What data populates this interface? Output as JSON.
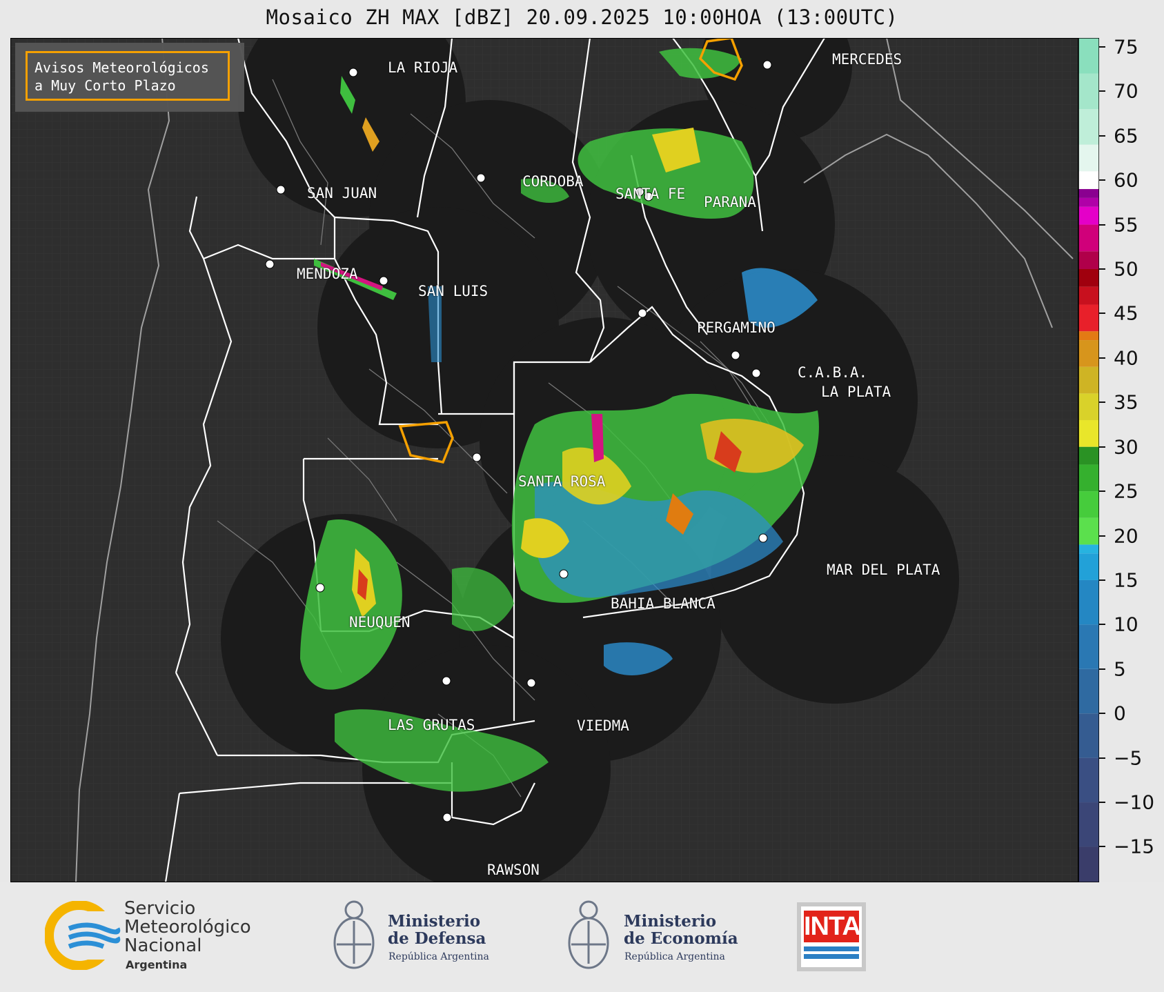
{
  "title": "Mosaico ZH MAX [dBZ] 20.09.2025 10:00HOA (13:00UTC)",
  "legend": {
    "line1": "Avisos Meteorológicos",
    "line2": "a Muy Corto Plazo",
    "border_color": "#f5a000"
  },
  "colorbar": {
    "ticks": [
      "75",
      "70",
      "65",
      "60",
      "55",
      "50",
      "45",
      "40",
      "35",
      "30",
      "25",
      "20",
      "15",
      "10",
      "5",
      "0",
      "−5",
      "−10",
      "−15"
    ],
    "range": [
      -19,
      76
    ],
    "units": "dBZ"
  },
  "cities": [
    {
      "id": "la-rioja",
      "name": "LA RIOJA"
    },
    {
      "id": "san-juan",
      "name": "SAN JUAN"
    },
    {
      "id": "cordoba",
      "name": "CORDOBA"
    },
    {
      "id": "santa-fe",
      "name": "SANTA FE"
    },
    {
      "id": "parana",
      "name": "PARANA"
    },
    {
      "id": "mendoza",
      "name": "MENDOZA"
    },
    {
      "id": "san-luis",
      "name": "SAN LUIS"
    },
    {
      "id": "mercedes",
      "name": "MERCEDES"
    },
    {
      "id": "pergamino",
      "name": "PERGAMINO"
    },
    {
      "id": "caba",
      "name": "C.A.B.A."
    },
    {
      "id": "la-plata",
      "name": "LA PLATA"
    },
    {
      "id": "santa-rosa",
      "name": "SANTA ROSA"
    },
    {
      "id": "mar-del-plata",
      "name": "MAR DEL PLATA"
    },
    {
      "id": "bahia-blanca",
      "name": "BAHIA BLANCA"
    },
    {
      "id": "neuquen",
      "name": "NEUQUEN"
    },
    {
      "id": "las-grutas",
      "name": "LAS GRUTAS"
    },
    {
      "id": "viedma",
      "name": "VIEDMA"
    },
    {
      "id": "rawson",
      "name": "RAWSON"
    }
  ],
  "footer": {
    "smn": {
      "line1": "Servicio",
      "line2": "Meteorológico",
      "line3": "Nacional",
      "line4": "Argentina"
    },
    "defensa": {
      "line1": "Ministerio",
      "line2": "de Defensa",
      "line3": "República Argentina"
    },
    "economia": {
      "line1": "Ministerio",
      "line2": "de Economía",
      "line3": "República Argentina"
    },
    "inta": {
      "label": "INTA"
    }
  },
  "colors": {
    "accent": "#f5a000",
    "land": "#2f2f2f",
    "radar_disc": "#1b1b1b",
    "inta_red": "#e2231a",
    "inta_blue": "#2b7fc4"
  }
}
